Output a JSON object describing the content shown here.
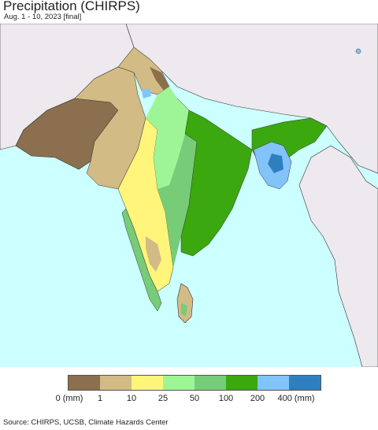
{
  "title": "Precipitation (CHIRPS)",
  "subtitle": "Aug. 1 - 10, 2023 [final]",
  "legend": {
    "colors": [
      "#8b6f4e",
      "#d2bb85",
      "#fef57a",
      "#9ef595",
      "#77cc77",
      "#3aa80e",
      "#82c3f9",
      "#2f7fbf"
    ],
    "labels": [
      "0 (mm)",
      "1",
      "10",
      "25",
      "50",
      "100",
      "200",
      "400 (mm)"
    ]
  },
  "source": "Source: CHIRPS, UCSB, Climate Hazards Center",
  "colors": {
    "ocean": "#ccffff",
    "outside_land": "#ede9ee",
    "border": "#222222"
  }
}
